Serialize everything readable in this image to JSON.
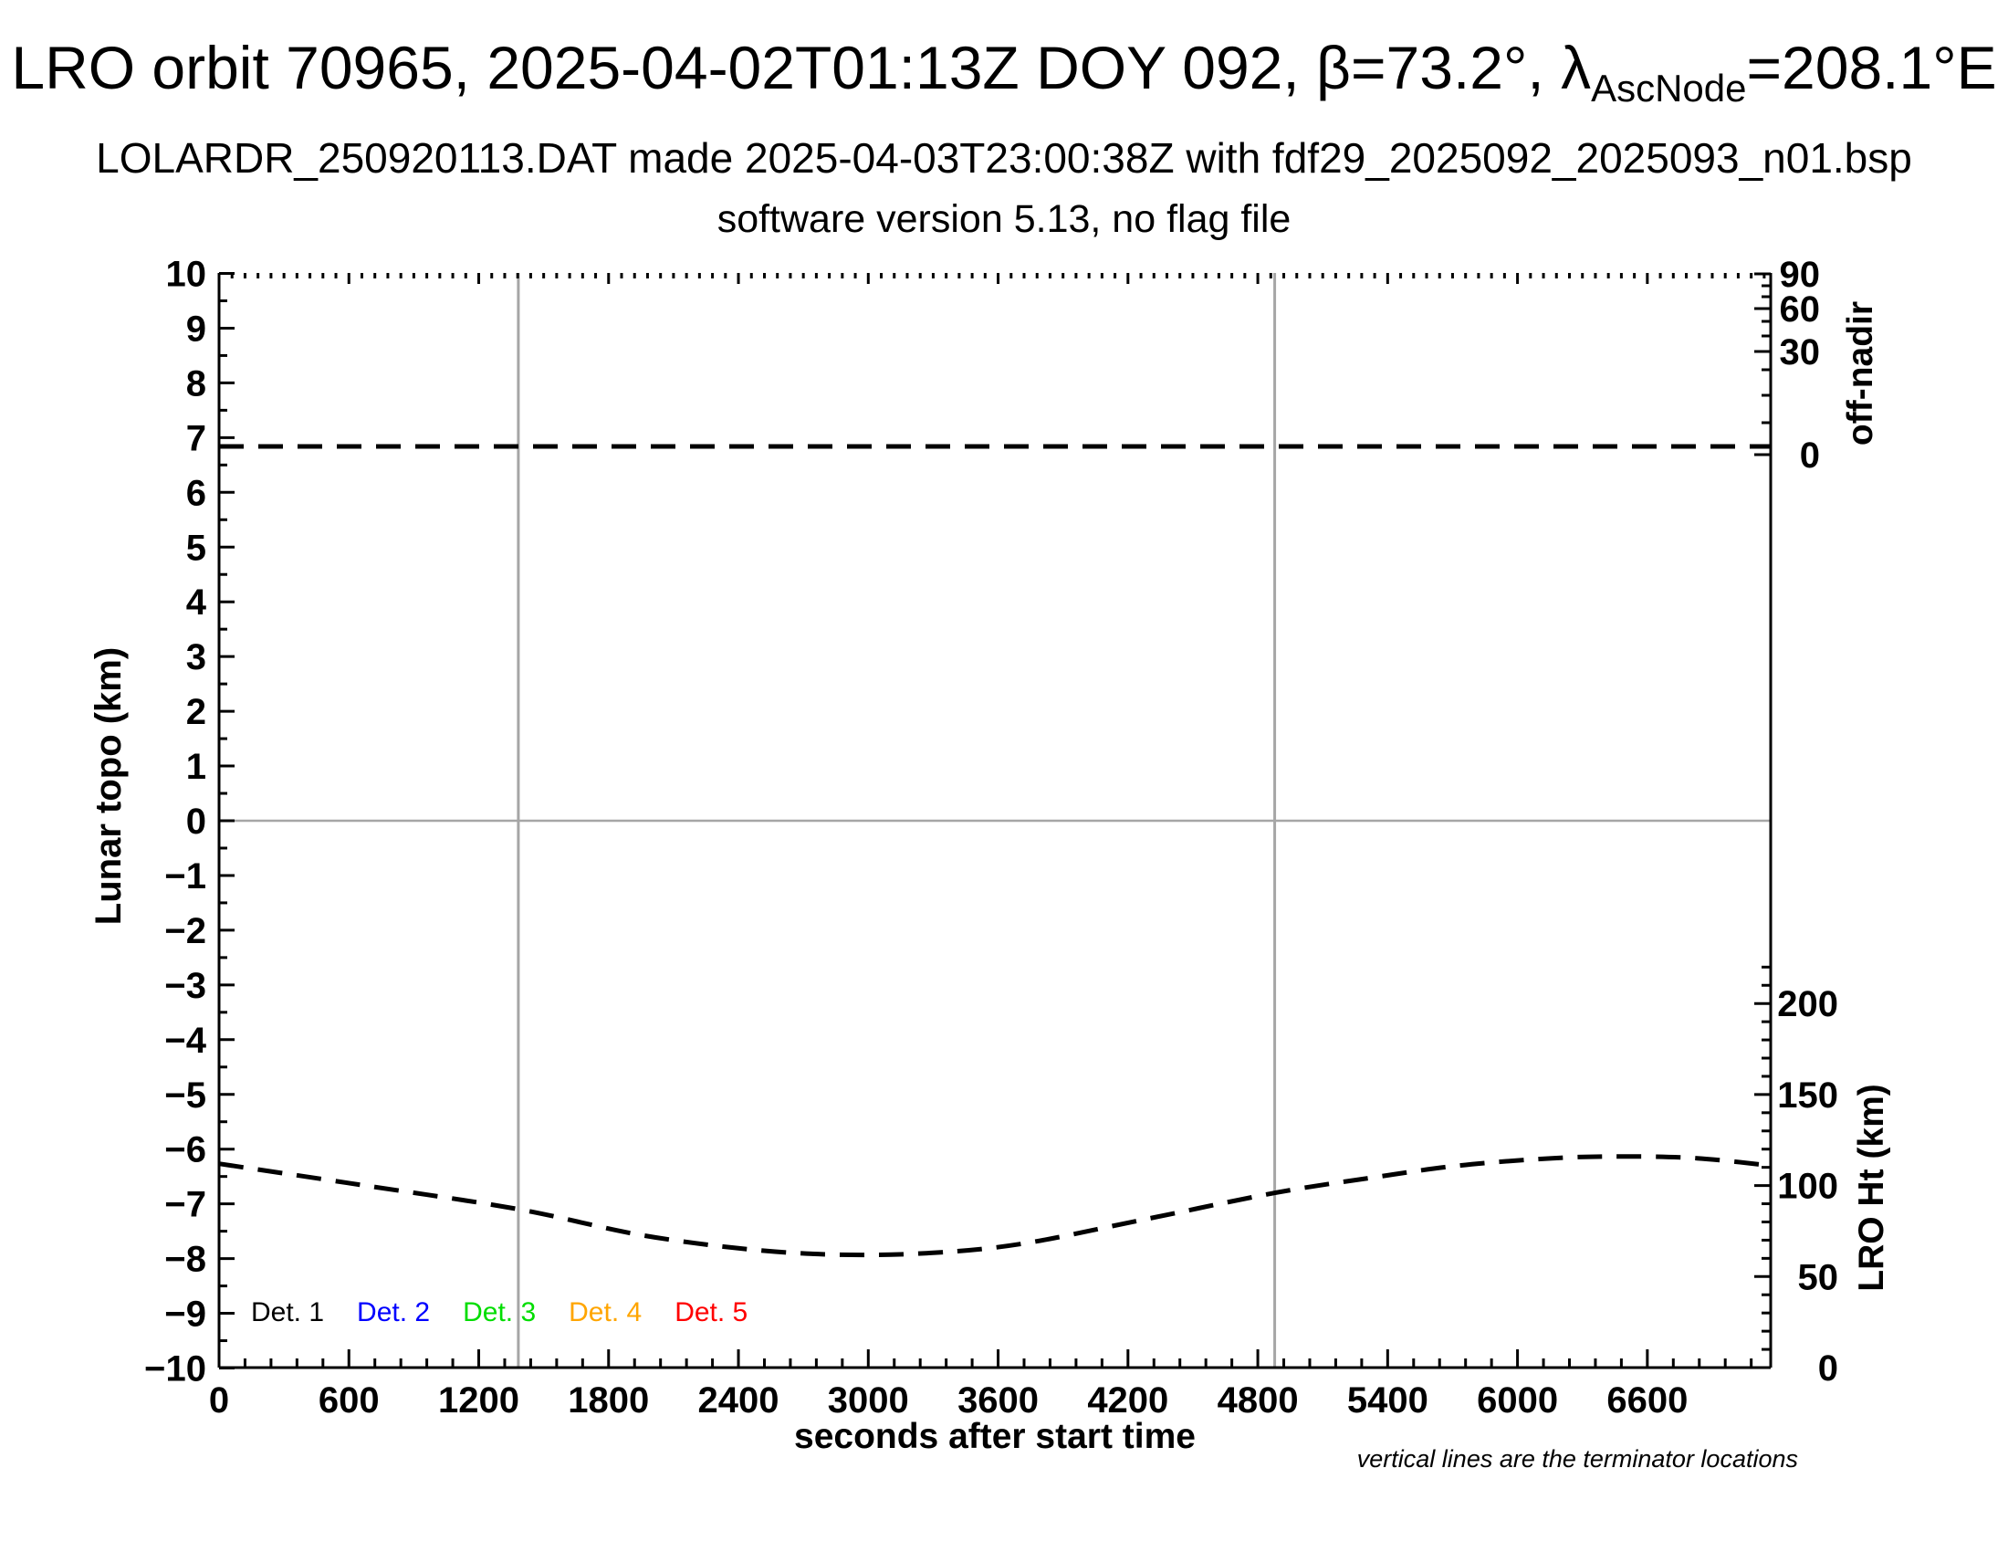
{
  "header": {
    "title_prefix": "LRO orbit 70965, 2025-04-02T01:13Z DOY 092, β=73.2°, λ",
    "title_subscript": "AscNode",
    "title_suffix": "=208.1°E",
    "subtitle1": "LOLARDR_250920113.DAT made 2025-04-03T23:00:38Z with fdf29_2025092_2025093_n01.bsp",
    "subtitle2": "software version 5.13, no flag file"
  },
  "chart_data": {
    "type": "line",
    "title": "LRO orbit 70965, 2025-04-02T01:13Z DOY 092, β=73.2°, λ_AscNode=208.1°E",
    "x_axis": {
      "label": "seconds after start time",
      "min": 0,
      "max": 7170,
      "major_ticks": [
        0,
        600,
        1200,
        1800,
        2400,
        3000,
        3600,
        4200,
        4800,
        5400,
        6000,
        6600
      ],
      "minor_tick_step": 120
    },
    "y_axis_left": {
      "label": "Lunar topo (km)",
      "min": -10,
      "max": 10,
      "major_tick_step": 1,
      "minor_tick_step": 0.5
    },
    "y_axis_right_top": {
      "label": "off-nadir",
      "unit": "degrees",
      "scale": "nonlinear",
      "tick_labels": [
        90,
        60,
        30,
        0
      ]
    },
    "y_axis_right_bottom": {
      "label": "LRO Ht (km)",
      "min": 0,
      "max": 220,
      "tick_labels": [
        200,
        150,
        100,
        50,
        0
      ],
      "minor_tick_step": 10
    },
    "terminator_lines_sec": [
      1383,
      4878
    ],
    "zero_reference_topo_km": 0,
    "series": [
      {
        "name": "off-nadir angle",
        "axis": "right-top",
        "line_style": "dashed",
        "color": "#000000",
        "type": "constant",
        "value_deg": 2
      },
      {
        "name": "LRO height",
        "axis": "right-bottom",
        "line_style": "dashed",
        "color": "#000000",
        "type": "curve",
        "points": [
          [
            0,
            112
          ],
          [
            675,
            100
          ],
          [
            1383,
            87
          ],
          [
            1940,
            73
          ],
          [
            2445,
            65
          ],
          [
            2870,
            62
          ],
          [
            3290,
            63
          ],
          [
            3710,
            68
          ],
          [
            4260,
            81
          ],
          [
            4880,
            96
          ],
          [
            5310,
            104
          ],
          [
            5730,
            111
          ],
          [
            6160,
            115
          ],
          [
            6490,
            116
          ],
          [
            6830,
            115
          ],
          [
            7166,
            111
          ]
        ]
      }
    ],
    "legend": [
      {
        "label": "Det. 1",
        "color": "#000000"
      },
      {
        "label": "Det. 2",
        "color": "#0000ff"
      },
      {
        "label": "Det. 3",
        "color": "#00dd00"
      },
      {
        "label": "Det. 4",
        "color": "#ffa500"
      },
      {
        "label": "Det. 5",
        "color": "#ff0000"
      }
    ],
    "note": "vertical lines are the terminator locations",
    "grid": "off",
    "legend_position": "bottom-left-inside"
  }
}
